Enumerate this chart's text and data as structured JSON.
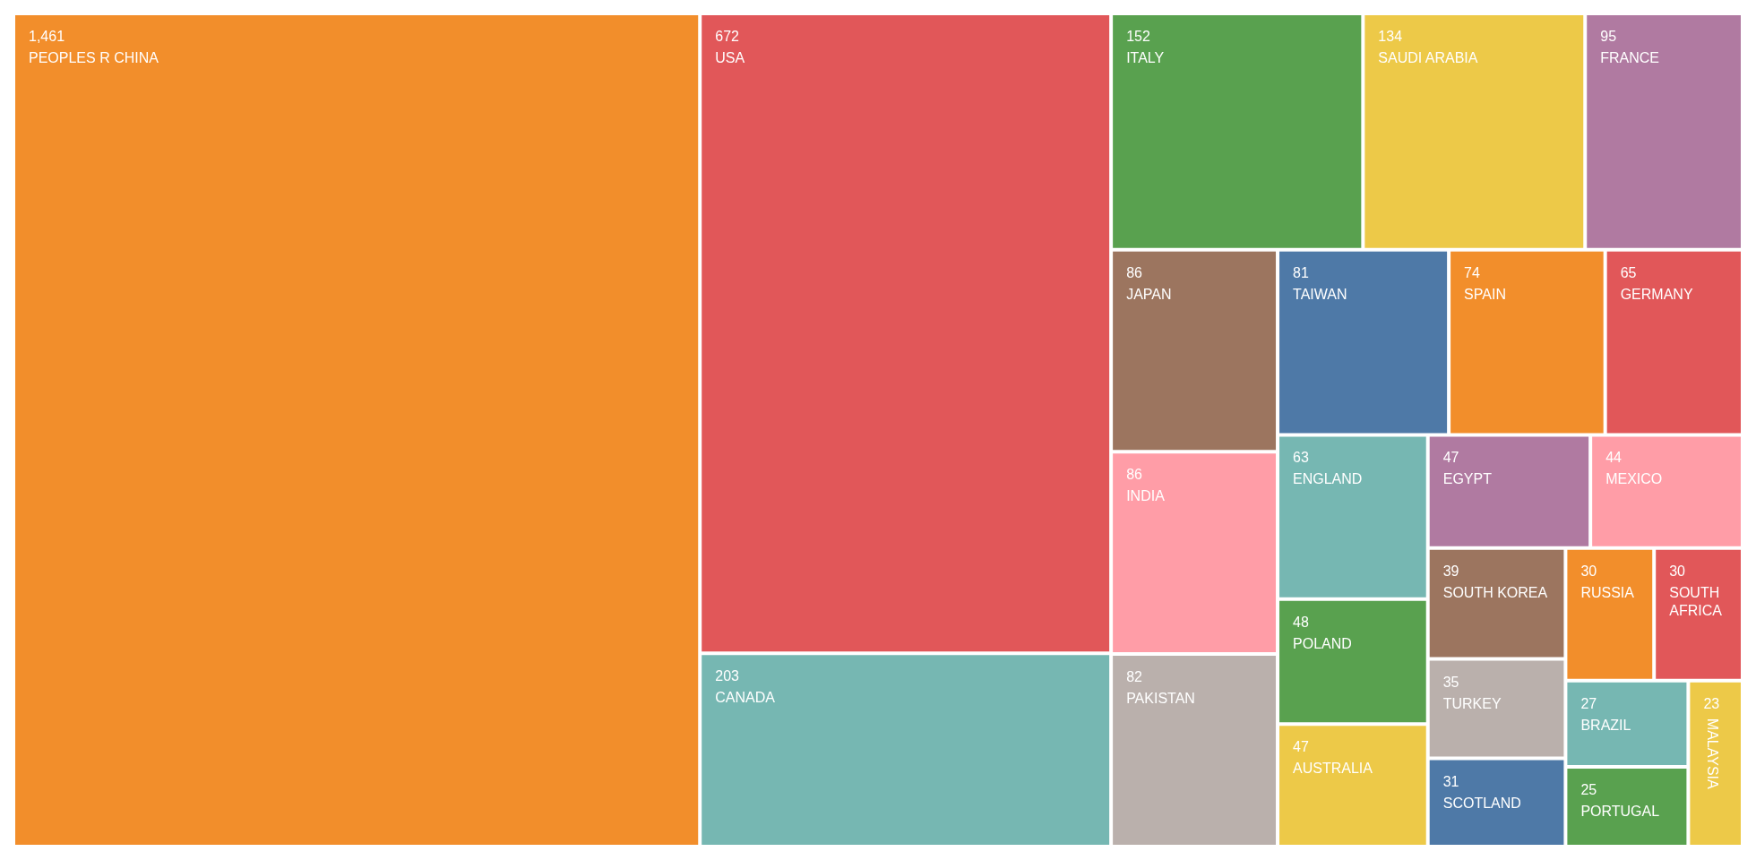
{
  "chart_data": {
    "type": "other",
    "categories": [
      "PEOPLES R CHINA",
      "USA",
      "CANADA",
      "ITALY",
      "SAUDI ARABIA",
      "FRANCE",
      "JAPAN",
      "INDIA",
      "PAKISTAN",
      "TAIWAN",
      "SPAIN",
      "GERMANY",
      "ENGLAND",
      "POLAND",
      "AUSTRALIA",
      "EGYPT",
      "MEXICO",
      "SOUTH KOREA",
      "TURKEY",
      "SCOTLAND",
      "RUSSIA",
      "SOUTH AFRICA",
      "BRAZIL",
      "PORTUGAL",
      "MALAYSIA"
    ],
    "values": [
      1461,
      672,
      203,
      152,
      134,
      95,
      86,
      86,
      82,
      81,
      74,
      65,
      63,
      48,
      47,
      47,
      44,
      39,
      35,
      31,
      30,
      30,
      27,
      25,
      23
    ],
    "colors": [
      "#f28e2b",
      "#e15759",
      "#76b7b2",
      "#59a14f",
      "#edc948",
      "#b07aa1",
      "#9c755f",
      "#ff9da7",
      "#bab0ac",
      "#4e79a7",
      "#f28e2b",
      "#e15759",
      "#76b7b2",
      "#59a14f",
      "#edc948",
      "#b07aa1",
      "#ff9da7",
      "#9c755f",
      "#bab0ac",
      "#4e79a7",
      "#f28e2b",
      "#e15759",
      "#76b7b2",
      "#59a14f",
      "#edc948"
    ],
    "value_labels": [
      "1,461",
      "672",
      "203",
      "152",
      "134",
      "95",
      "86",
      "86",
      "82",
      "81",
      "74",
      "65",
      "63",
      "48",
      "47",
      "47",
      "44",
      "39",
      "35",
      "31",
      "30",
      "30",
      "27",
      "25",
      "23"
    ]
  }
}
